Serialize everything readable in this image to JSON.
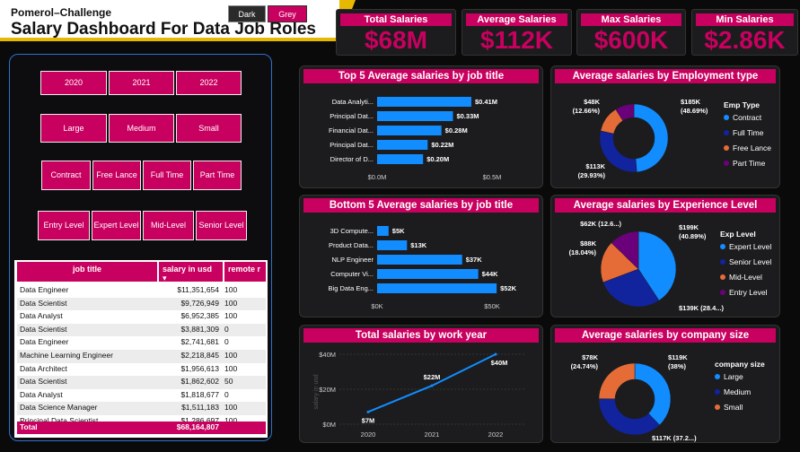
{
  "header": {
    "subtitle": "Pomerol–Challenge",
    "title": "Salary Dashboard For Data Job Roles",
    "theme_dark": "Dark",
    "theme_grey": "Grey"
  },
  "kpis": [
    {
      "label": "Total Salaries",
      "value": "$68M"
    },
    {
      "label": "Average Salaries",
      "value": "$112K"
    },
    {
      "label": "Max Salaries",
      "value": "$600K"
    },
    {
      "label": "Min Salaries",
      "value": "$2.86K"
    }
  ],
  "slicers": {
    "years": [
      "2020",
      "2021",
      "2022"
    ],
    "company_size": [
      "Large",
      "Medium",
      "Small"
    ],
    "employment": [
      "Contract",
      "Free Lance",
      "Full Time",
      "Part Time"
    ],
    "experience": [
      "Entry Level",
      "Expert Level",
      "Mid-Level",
      "Senior Level"
    ]
  },
  "table": {
    "headers": [
      "job title",
      "salary in usd",
      "remote r"
    ],
    "rows": [
      [
        "Data Engineer",
        "$11,351,654",
        "100"
      ],
      [
        "Data Scientist",
        "$9,726,949",
        "100"
      ],
      [
        "Data Analyst",
        "$6,952,385",
        "100"
      ],
      [
        "Data Scientist",
        "$3,881,309",
        "0"
      ],
      [
        "Data Engineer",
        "$2,741,681",
        "0"
      ],
      [
        "Machine Learning Engineer",
        "$2,218,845",
        "100"
      ],
      [
        "Data Architect",
        "$1,956,613",
        "100"
      ],
      [
        "Data Scientist",
        "$1,862,602",
        "50"
      ],
      [
        "Data Analyst",
        "$1,818,677",
        "0"
      ],
      [
        "Data Science Manager",
        "$1,511,183",
        "100"
      ],
      [
        "Principal Data Scientist",
        "$1,286,697",
        "100"
      ]
    ],
    "total_label": "Total",
    "total_value": "$68,164,807"
  },
  "chart_data": [
    {
      "type": "bar",
      "title": "Top 5 Average salaries by job title",
      "categories": [
        "Data Analyti...",
        "Principal Dat...",
        "Financial Dat...",
        "Principal Dat...",
        "Director of D..."
      ],
      "values": [
        0.41,
        0.33,
        0.28,
        0.22,
        0.2
      ],
      "data_labels": [
        "$0.41M",
        "$0.33M",
        "$0.28M",
        "$0.22M",
        "$0.20M"
      ],
      "ticks": [
        "$0.0M",
        "$0.5M"
      ],
      "xlim": [
        0,
        0.5
      ],
      "orientation": "horizontal",
      "color": "#118dff"
    },
    {
      "type": "bar",
      "title": "Bottom 5 Average salaries by job title",
      "categories": [
        "3D Compute...",
        "Product Data...",
        "NLP Engineer",
        "Computer Vi...",
        "Big Data Eng..."
      ],
      "values": [
        5,
        13,
        37,
        44,
        52
      ],
      "data_labels": [
        "$5K",
        "$13K",
        "$37K",
        "$44K",
        "$52K"
      ],
      "ticks": [
        "$0K",
        "$50K"
      ],
      "xlim": [
        0,
        50
      ],
      "orientation": "horizontal",
      "color": "#118dff"
    },
    {
      "type": "line",
      "title": "Total salaries by work year",
      "x": [
        "2020",
        "2021",
        "2022"
      ],
      "values": [
        7,
        22,
        40
      ],
      "data_labels": [
        "$7M",
        "$22M",
        "$40M"
      ],
      "yticks": [
        "$40M",
        "$20M",
        "$0M"
      ],
      "ylim": [
        0,
        40
      ],
      "ylabel": "salary in usd",
      "color": "#118dff"
    },
    {
      "type": "pie",
      "variant": "donut",
      "title": "Average salaries by Employment type",
      "legend_title": "Emp Type",
      "labels": [
        "Contract",
        "Full Time",
        "Free Lance",
        "Part Time"
      ],
      "values": [
        185,
        113,
        48,
        34
      ],
      "slice_labels": [
        "$185K\n(48.69%)",
        "$113K\n(29.93%)",
        "$48K\n(12.66%)",
        ""
      ],
      "colors": [
        "#118dff",
        "#12239e",
        "#e66c37",
        "#6b007b"
      ]
    },
    {
      "type": "pie",
      "title": "Average salaries by Experience Level",
      "legend_title": "Exp Level",
      "labels": [
        "Expert Level",
        "Senior Level",
        "Mid-Level",
        "Entry Level"
      ],
      "values": [
        199,
        139,
        88,
        62
      ],
      "slice_labels": [
        "$199K\n(40.89%)",
        "$139K (28.4...)",
        "$88K\n(18.04%)",
        "$62K (12.6...)"
      ],
      "colors": [
        "#118dff",
        "#12239e",
        "#e66c37",
        "#6b007b"
      ]
    },
    {
      "type": "pie",
      "variant": "donut",
      "title": "Average salaries by company size",
      "legend_title": "company size",
      "labels": [
        "Large",
        "Medium",
        "Small"
      ],
      "values": [
        119,
        117,
        78
      ],
      "slice_labels": [
        "$119K\n(38%)",
        "$117K (37.2...)",
        "$78K\n(24.74%)"
      ],
      "colors": [
        "#118dff",
        "#12239e",
        "#e66c37"
      ]
    }
  ]
}
